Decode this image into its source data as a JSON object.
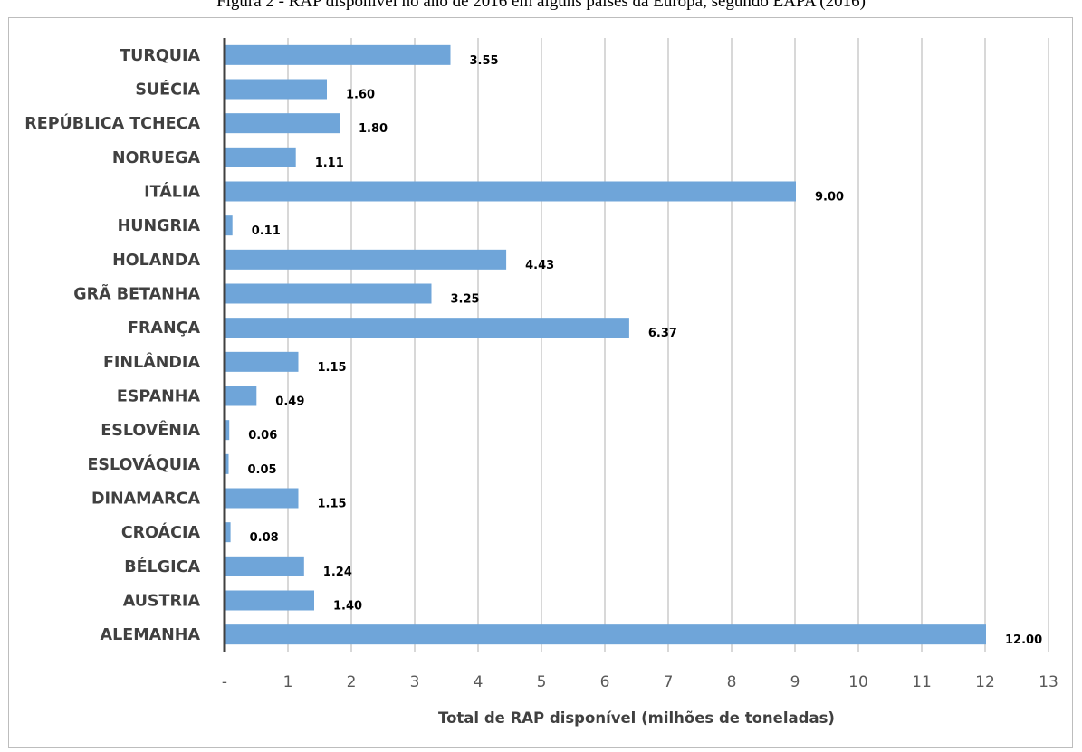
{
  "caption": "Figura 2 - RAP disponível no ano de 2016 em alguns países da Europa, segundo EAPA (2016)",
  "chart_data": {
    "type": "bar",
    "orientation": "horizontal",
    "title": "",
    "xlabel": "Total de RAP  disponível (milhões de toneladas)",
    "ylabel": "",
    "xlim": [
      0,
      13
    ],
    "x_ticks": [
      "-",
      "1",
      "2",
      "3",
      "4",
      "5",
      "6",
      "7",
      "8",
      "9",
      "10",
      "11",
      "12",
      "13"
    ],
    "grid": "vertical",
    "bar_color": "#6fa5d9",
    "categories": [
      "TURQUIA",
      "SUÉCIA",
      "REPÚBLICA TCHECA",
      "NORUEGA",
      "ITÁLIA",
      "HUNGRIA",
      "HOLANDA",
      "GRÃ BETANHA",
      "FRANÇA",
      "FINLÂNDIA",
      "ESPANHA",
      "ESLOVÊNIA",
      "ESLOVÁQUIA",
      "DINAMARCA",
      "CROÁCIA",
      "BÉLGICA",
      "AUSTRIA",
      "ALEMANHA"
    ],
    "values": [
      3.55,
      1.6,
      1.8,
      1.11,
      9.0,
      0.11,
      4.43,
      3.25,
      6.37,
      1.15,
      0.49,
      0.06,
      0.05,
      1.15,
      0.08,
      1.24,
      1.4,
      12.0
    ],
    "value_labels": [
      "3.55",
      "1.60",
      "1.80",
      "1.11",
      "9.00",
      "0.11",
      "4.43",
      "3.25",
      "6.37",
      "1.15",
      "0.49",
      "0.06",
      "0.05",
      "1.15",
      "0.08",
      "1.24",
      "1.40",
      "12.00"
    ]
  }
}
